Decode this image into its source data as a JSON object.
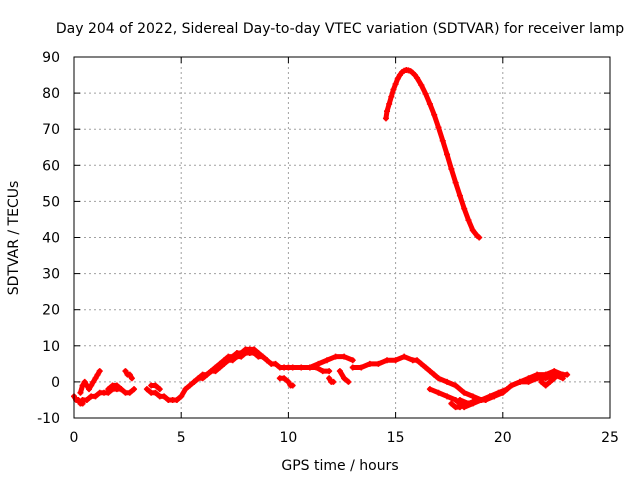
{
  "chart_data": {
    "type": "scatter",
    "title": "Day 204 of 2022, Sidereal Day-to-day VTEC variation (SDTVAR) for receiver lamp",
    "xlabel": "GPS time / hours",
    "ylabel": "SDTVAR / TECUs",
    "xlim": [
      0,
      25
    ],
    "ylim": [
      -10,
      90
    ],
    "xticks": [
      0,
      5,
      10,
      15,
      20,
      25
    ],
    "yticks": [
      -10,
      0,
      10,
      20,
      30,
      40,
      50,
      60,
      70,
      80,
      90
    ],
    "grid": true,
    "marker": "plus",
    "series": [
      {
        "name": "lamp",
        "color": "#ff0000",
        "segments": [
          {
            "x": [
              0.0,
              0.1,
              0.2,
              0.3,
              0.4
            ],
            "y": [
              -4,
              -5,
              -5,
              -6,
              -6
            ]
          },
          {
            "x": [
              0.3,
              0.4,
              0.5,
              0.6,
              0.7,
              0.8,
              0.9,
              1.0,
              1.1,
              1.2
            ],
            "y": [
              -3,
              -1,
              0,
              -1,
              -2,
              -1,
              0,
              1,
              2,
              3
            ]
          },
          {
            "x": [
              0.4,
              0.6,
              0.8,
              1.0,
              1.2,
              1.4,
              1.6,
              1.8,
              2.0,
              2.2,
              2.4,
              2.6,
              2.8
            ],
            "y": [
              -5,
              -5,
              -4,
              -4,
              -3,
              -3,
              -3,
              -2,
              -2,
              -2,
              -3,
              -3,
              -2
            ]
          },
          {
            "x": [
              1.6,
              1.8,
              2.0,
              2.2
            ],
            "y": [
              -2,
              -1,
              -1,
              -2
            ]
          },
          {
            "x": [
              2.4,
              2.5,
              2.6,
              2.7
            ],
            "y": [
              3,
              2,
              2,
              1
            ]
          },
          {
            "x": [
              3.4,
              3.6,
              3.8,
              4.0,
              4.2,
              4.4,
              4.6,
              4.8,
              5.0,
              5.2,
              5.4,
              5.6,
              5.8,
              6.0,
              6.2,
              6.4,
              6.6,
              6.8,
              7.0,
              7.2,
              7.4,
              7.6,
              7.8,
              8.0,
              8.2,
              8.4,
              8.6,
              8.8,
              9.0,
              9.2,
              9.4,
              9.6,
              9.8,
              10.0
            ],
            "y": [
              -2,
              -3,
              -3,
              -4,
              -4,
              -5,
              -5,
              -5,
              -4,
              -2,
              -1,
              0,
              1,
              2,
              2,
              3,
              4,
              5,
              6,
              7,
              7,
              8,
              8,
              9,
              9,
              9,
              8,
              7,
              6,
              5,
              5,
              4,
              4,
              4
            ]
          },
          {
            "x": [
              3.6,
              3.8,
              4.0
            ],
            "y": [
              -1,
              -1,
              -2
            ]
          },
          {
            "x": [
              5.6,
              5.8,
              6.0,
              6.2,
              6.4,
              6.6,
              6.8,
              7.0,
              7.2,
              7.4,
              7.6,
              7.8,
              8.0,
              8.2,
              8.4,
              8.6,
              8.8,
              9.0
            ],
            "y": [
              0,
              1,
              1,
              2,
              3,
              3,
              4,
              5,
              6,
              6,
              7,
              7,
              8,
              8,
              8,
              7,
              7,
              6
            ]
          },
          {
            "x": [
              9.6,
              9.8,
              10.0,
              10.1,
              10.2
            ],
            "y": [
              1,
              1,
              0,
              -1,
              -1
            ]
          },
          {
            "x": [
              9.8,
              10.2,
              10.6,
              11.0,
              11.4,
              11.8,
              12.2,
              12.6,
              13.0
            ],
            "y": [
              4,
              4,
              4,
              4,
              5,
              6,
              7,
              7,
              6
            ]
          },
          {
            "x": [
              11.0,
              11.3,
              11.6,
              11.9
            ],
            "y": [
              4,
              4,
              3,
              3
            ]
          },
          {
            "x": [
              11.9,
              12.0,
              12.1
            ],
            "y": [
              1,
              0,
              0
            ]
          },
          {
            "x": [
              12.4,
              12.6,
              12.8
            ],
            "y": [
              3,
              1,
              0
            ]
          },
          {
            "x": [
              13.0,
              13.4,
              13.8,
              14.2,
              14.6,
              15.0,
              15.4,
              15.8,
              16.0,
              16.2,
              16.4,
              16.6,
              16.8
            ],
            "y": [
              4,
              4,
              5,
              5,
              6,
              6,
              7,
              6,
              6,
              5,
              4,
              3,
              2
            ]
          },
          {
            "x": [
              16.8,
              17.0,
              17.4,
              17.8,
              18.2,
              18.6,
              19.0,
              19.4,
              19.8,
              20.2
            ],
            "y": [
              2,
              1,
              0,
              -1,
              -3,
              -4,
              -5,
              -4,
              -3,
              -2
            ]
          },
          {
            "x": [
              16.6,
              17.0,
              17.4,
              17.8,
              18.2,
              18.6,
              19.0
            ],
            "y": [
              -2,
              -3,
              -4,
              -5,
              -7,
              -6,
              -5
            ]
          },
          {
            "x": [
              17.6,
              17.8,
              18.0,
              18.2,
              18.4,
              18.6,
              18.8,
              19.0,
              19.2,
              19.4
            ],
            "y": [
              -6,
              -7,
              -7,
              -6,
              -6,
              -6,
              -5,
              -5,
              -5,
              -4
            ]
          },
          {
            "x": [
              18.0,
              18.4,
              18.8,
              19.2,
              19.6,
              20.0,
              20.4,
              20.8,
              21.2,
              21.6,
              22.0,
              22.4,
              22.8,
              23.0
            ],
            "y": [
              -5,
              -6,
              -5,
              -5,
              -4,
              -3,
              -1,
              0,
              1,
              2,
              2,
              3,
              2,
              2
            ]
          },
          {
            "x": [
              20.4,
              20.8,
              21.2,
              21.6,
              22.0,
              22.4,
              22.8
            ],
            "y": [
              -1,
              0,
              0,
              1,
              1,
              2,
              1
            ]
          },
          {
            "x": [
              21.8,
              22.0,
              22.2,
              22.4
            ],
            "y": [
              0,
              -1,
              0,
              1
            ]
          },
          {
            "x": [
              14.55,
              14.6,
              14.7,
              14.8,
              14.9,
              15.0,
              15.1,
              15.2,
              15.3,
              15.4,
              15.5,
              15.6,
              15.7,
              15.8,
              15.9,
              16.0,
              16.2,
              16.4,
              16.6,
              16.8,
              17.0,
              17.2,
              17.4,
              17.6,
              17.8,
              18.0,
              18.2,
              18.4,
              18.6,
              18.8,
              18.9
            ],
            "y": [
              73,
              75,
              77,
              79,
              81,
              82.5,
              84,
              85,
              85.8,
              86.2,
              86.4,
              86.3,
              86.1,
              85.6,
              85,
              84.2,
              82.2,
              79.8,
              77,
              74,
              70.5,
              66.8,
              63,
              59,
              55.2,
              51.6,
              48,
              44.8,
              42,
              40.5,
              40
            ]
          }
        ]
      }
    ]
  }
}
